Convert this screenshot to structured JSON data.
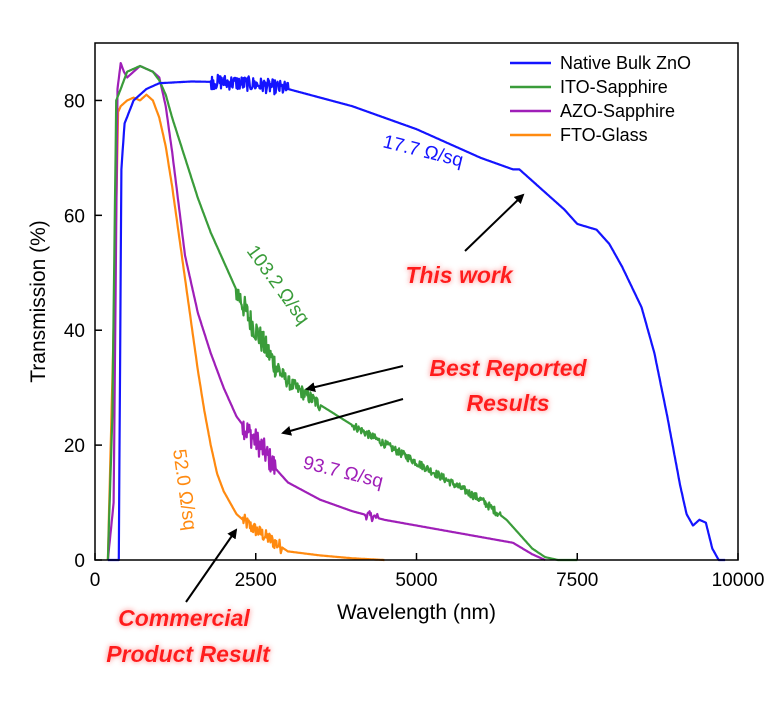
{
  "chart_data": {
    "type": "line",
    "xlabel": "Wavelength (nm)",
    "ylabel": "Transmission (%)",
    "xlim": [
      0,
      10000
    ],
    "ylim": [
      0,
      90
    ],
    "xticks": [
      0,
      2500,
      5000,
      7500,
      10000
    ],
    "yticks": [
      0,
      20,
      40,
      60,
      80
    ],
    "legend_position": "top-right",
    "series": [
      {
        "name": "Native Bulk ZnO",
        "color": "#1414ff",
        "sheet_resistance": "17.7 Ω/sq",
        "noise": [
          [
            1800,
            3000,
            1.3
          ]
        ],
        "x": [
          200,
          370,
          410,
          460,
          600,
          800,
          1000,
          1500,
          2000,
          2500,
          3000,
          3500,
          4000,
          4500,
          5000,
          5500,
          6000,
          6500,
          6600,
          6700,
          7000,
          7300,
          7500,
          7650,
          7800,
          8000,
          8200,
          8500,
          8700,
          8900,
          9100,
          9200,
          9300,
          9400,
          9500,
          9600,
          9700,
          9800
        ],
        "y": [
          0,
          0,
          68,
          76,
          80,
          82,
          83,
          83.3,
          83.2,
          82.8,
          82,
          80.5,
          79,
          77,
          75,
          72.5,
          70,
          68,
          68,
          67,
          64,
          61,
          58.5,
          58,
          57.5,
          55,
          51,
          44,
          36,
          25,
          13,
          8,
          6,
          7,
          6.5,
          2,
          0,
          0
        ]
      },
      {
        "name": "ITO-Sapphire",
        "color": "#3a9c3a",
        "sheet_resistance": "103.2 Ω/sq",
        "noise": [
          [
            2200,
            2900,
            2.2
          ],
          [
            2900,
            3500,
            1.2
          ],
          [
            4000,
            6300,
            0.7
          ]
        ],
        "x": [
          200,
          270,
          330,
          400,
          500,
          600,
          700,
          800,
          900,
          1000,
          1100,
          1200,
          1400,
          1600,
          1800,
          2000,
          2200,
          2400,
          2600,
          2800,
          3000,
          3500,
          4000,
          5000,
          6000,
          6400,
          6800,
          7000,
          7200,
          7500
        ],
        "y": [
          0,
          25,
          80,
          82,
          85,
          85.5,
          86,
          85.5,
          85,
          83.5,
          81,
          77,
          70,
          63,
          57,
          52,
          47,
          42,
          38,
          34,
          31,
          27,
          23.5,
          17,
          10.5,
          7,
          2,
          0.5,
          0,
          0
        ]
      },
      {
        "name": "AZO-Sapphire",
        "color": "#9f1fb8",
        "sheet_resistance": "93.7 Ω/sq",
        "noise": [
          [
            2300,
            2800,
            2.2
          ],
          [
            4200,
            4400,
            0.8
          ]
        ],
        "x": [
          200,
          290,
          350,
          400,
          450,
          500,
          600,
          700,
          800,
          900,
          1000,
          1100,
          1200,
          1300,
          1400,
          1600,
          1800,
          2000,
          2200,
          2400,
          2600,
          2800,
          3000,
          3500,
          4000,
          4500,
          5000,
          5500,
          6000,
          6500,
          6800,
          7000
        ],
        "y": [
          0,
          10,
          82,
          86.5,
          85,
          84,
          85,
          86,
          85.5,
          85,
          84,
          79,
          71,
          62,
          53,
          43,
          36,
          30,
          25,
          22,
          19.5,
          16,
          13.5,
          10.5,
          8.5,
          7,
          6,
          5,
          4,
          3,
          1,
          0
        ]
      },
      {
        "name": "FTO-Glass",
        "color": "#ff8a10",
        "sheet_resistance": "52.0 Ω/sq",
        "noise": [
          [
            2300,
            2900,
            1.2
          ]
        ],
        "x": [
          200,
          300,
          360,
          400,
          500,
          600,
          700,
          800,
          900,
          1000,
          1100,
          1200,
          1300,
          1400,
          1500,
          1600,
          1700,
          1800,
          1900,
          2000,
          2200,
          2400,
          2600,
          2800,
          3000,
          3500,
          4000,
          4500
        ],
        "y": [
          0,
          45,
          78,
          79,
          80,
          80.5,
          80,
          81,
          80,
          77,
          72,
          65,
          57,
          49,
          41,
          33,
          26,
          20,
          15,
          12,
          8,
          6,
          4.5,
          3,
          1.5,
          0.8,
          0.3,
          0
        ]
      }
    ],
    "annotations": [
      {
        "text": "17.7 Ω/sq",
        "series": "Native Bulk ZnO"
      },
      {
        "text": "103.2 Ω/sq",
        "series": "ITO-Sapphire"
      },
      {
        "text": "93.7 Ω/sq",
        "series": "AZO-Sapphire"
      },
      {
        "text": "52.0 Ω/sq",
        "series": "FTO-Glass"
      },
      {
        "text": "This work"
      },
      {
        "text": "Best Reported"
      },
      {
        "text": "Results"
      },
      {
        "text": "Commercial"
      },
      {
        "text": "Product Result"
      }
    ]
  },
  "colors": {
    "callout": "#ff1a1a",
    "axis": "#000000"
  }
}
